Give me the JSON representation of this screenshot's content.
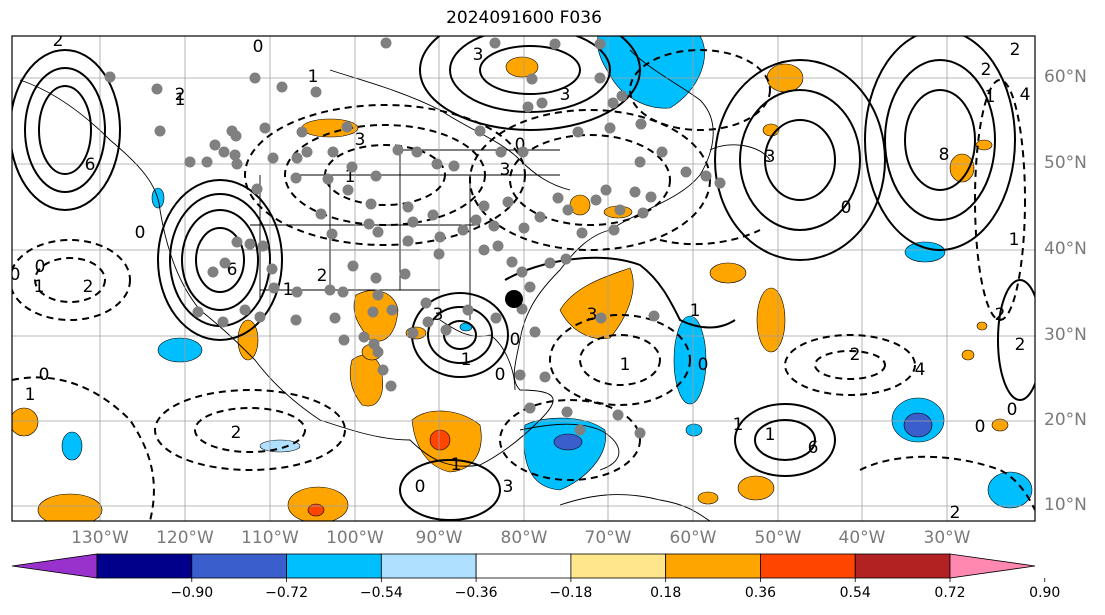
{
  "title": "2024091600 F036",
  "lon_labels": [
    "130°W",
    "120°W",
    "110°W",
    "100°W",
    "90°W",
    "80°W",
    "70°W",
    "60°W",
    "50°W",
    "40°W",
    "30°W"
  ],
  "lat_labels": [
    "60°N",
    "50°N",
    "40°N",
    "30°N",
    "20°N",
    "10°N"
  ],
  "colorbar": {
    "ticks": [
      "−0.90",
      "−0.72",
      "−0.54",
      "−0.36",
      "−0.18",
      "0.18",
      "0.36",
      "0.54",
      "0.72",
      "0.90"
    ],
    "colors": [
      "#9932cc",
      "#00008b",
      "#3a5fcd",
      "#00bfff",
      "#b0e0ff",
      "#ffffff",
      "#ffe68c",
      "#ffa500",
      "#ff4500",
      "#b22222",
      "#ff88b0"
    ]
  },
  "contour_labels": [
    "2",
    "0",
    "3",
    "3",
    "1",
    "6",
    "3",
    "0",
    "8",
    "2",
    "1",
    "3",
    "0",
    "1",
    "3",
    "2",
    "1",
    "2",
    "0",
    "6",
    "1",
    "2",
    "3",
    "0",
    "1",
    "0",
    "3",
    "1",
    "0",
    "1",
    "2",
    "4",
    "1",
    "6",
    "1",
    "1",
    "0",
    "3",
    "2",
    "0",
    "1",
    "2",
    "0",
    "0",
    "2",
    "1",
    "2",
    "0",
    "1",
    "0",
    "2",
    "4"
  ],
  "colors": {
    "positive_shade": "#ffa500",
    "negative_shade": "#00bfff",
    "grid": "#a0a0a0",
    "label": "#7a7a7a"
  }
}
